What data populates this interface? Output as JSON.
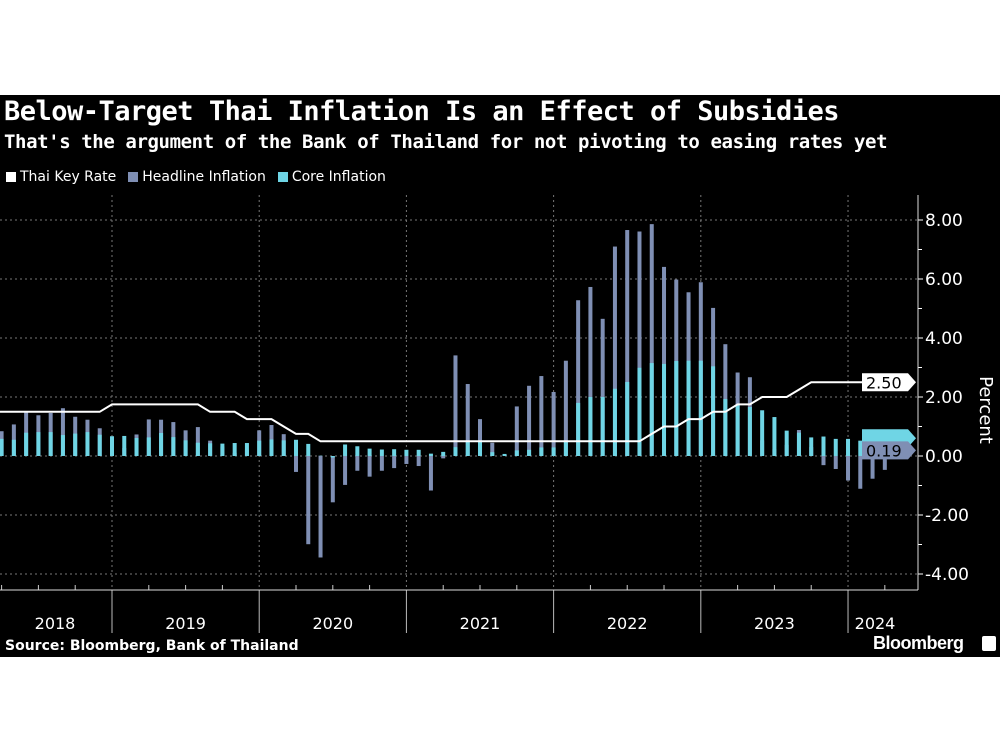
{
  "chart_data": {
    "type": "bar",
    "title": "Below-Target Thai Inflation Is an Effect of Subsidies",
    "subtitle": "That's the argument of the Bank of Thailand for not pivoting to easing rates yet",
    "ylabel": "Percent",
    "ylim": [
      -4.5,
      8.5
    ],
    "yticks": [
      "8.00",
      "6.00",
      "4.00",
      "2.00",
      "0.00",
      "-2.00",
      "-4.00"
    ],
    "ytick_values": [
      8,
      6,
      4,
      2,
      0,
      -2,
      -4
    ],
    "xticks": [
      "2018",
      "2019",
      "2020",
      "2021",
      "2022",
      "2023",
      "2024"
    ],
    "x_start": "2018-03",
    "x_end": "2024-04",
    "frequency": "monthly",
    "grid": true,
    "legend_position": "top-left",
    "series": [
      {
        "name": "Thai Key Rate",
        "type": "line",
        "color": "#ffffff",
        "last_value_label": "2.50",
        "values": [
          1.5,
          1.5,
          1.5,
          1.5,
          1.5,
          1.5,
          1.5,
          1.5,
          1.5,
          1.75,
          1.75,
          1.75,
          1.75,
          1.75,
          1.75,
          1.75,
          1.75,
          1.5,
          1.5,
          1.5,
          1.25,
          1.25,
          1.25,
          1.0,
          0.75,
          0.75,
          0.5,
          0.5,
          0.5,
          0.5,
          0.5,
          0.5,
          0.5,
          0.5,
          0.5,
          0.5,
          0.5,
          0.5,
          0.5,
          0.5,
          0.5,
          0.5,
          0.5,
          0.5,
          0.5,
          0.5,
          0.5,
          0.5,
          0.5,
          0.5,
          0.5,
          0.5,
          0.5,
          0.75,
          1.0,
          1.0,
          1.25,
          1.25,
          1.5,
          1.5,
          1.75,
          1.75,
          2.0,
          2.0,
          2.0,
          2.25,
          2.5,
          2.5,
          2.5,
          2.5,
          2.5,
          2.5,
          2.5,
          2.5
        ]
      },
      {
        "name": "Headline Inflation",
        "type": "bar",
        "color": "#7f8fb4",
        "last_value_label": "0.19",
        "values": [
          0.84,
          1.07,
          1.49,
          1.38,
          1.46,
          1.62,
          1.33,
          1.23,
          0.94,
          0.36,
          0.27,
          0.73,
          1.24,
          1.23,
          1.15,
          0.87,
          0.98,
          0.52,
          0.32,
          0.11,
          0.21,
          0.87,
          1.05,
          0.74,
          -0.54,
          -2.99,
          -3.44,
          -1.57,
          -0.98,
          -0.5,
          -0.7,
          -0.5,
          -0.41,
          -0.27,
          -0.34,
          -1.17,
          -0.08,
          3.41,
          2.44,
          1.25,
          0.45,
          0.02,
          1.68,
          2.38,
          2.71,
          2.17,
          3.23,
          5.28,
          5.73,
          4.65,
          7.1,
          7.66,
          7.61,
          7.86,
          6.41,
          5.98,
          5.55,
          5.89,
          5.02,
          3.79,
          2.83,
          2.67,
          0.53,
          0.23,
          0.38,
          0.88,
          0.3,
          -0.31,
          -0.44,
          -0.83,
          -1.11,
          -0.77,
          -0.47,
          0.19
        ]
      },
      {
        "name": "Core Inflation",
        "type": "bar",
        "color": "#6fd5e5",
        "values": [
          0.58,
          0.55,
          0.79,
          0.81,
          0.81,
          0.71,
          0.76,
          0.81,
          0.72,
          0.67,
          0.68,
          0.61,
          0.63,
          0.78,
          0.64,
          0.53,
          0.45,
          0.43,
          0.42,
          0.44,
          0.44,
          0.52,
          0.56,
          0.53,
          0.55,
          0.41,
          0.01,
          -0.05,
          0.39,
          0.33,
          0.25,
          0.22,
          0.23,
          0.21,
          0.21,
          0.08,
          0.14,
          0.3,
          0.49,
          0.52,
          0.13,
          0.07,
          0.19,
          0.21,
          0.29,
          0.29,
          0.52,
          1.8,
          2.0,
          2.0,
          2.28,
          2.51,
          2.99,
          3.15,
          3.12,
          3.22,
          3.23,
          3.23,
          3.04,
          1.93,
          1.75,
          1.66,
          1.55,
          1.32,
          0.86,
          0.79,
          0.63,
          0.66,
          0.58,
          0.58,
          0.52,
          0.43,
          0.37,
          0.37
        ]
      }
    ]
  },
  "source": "Source: Bloomberg, Bank of Thailand",
  "brand": "Bloomberg"
}
